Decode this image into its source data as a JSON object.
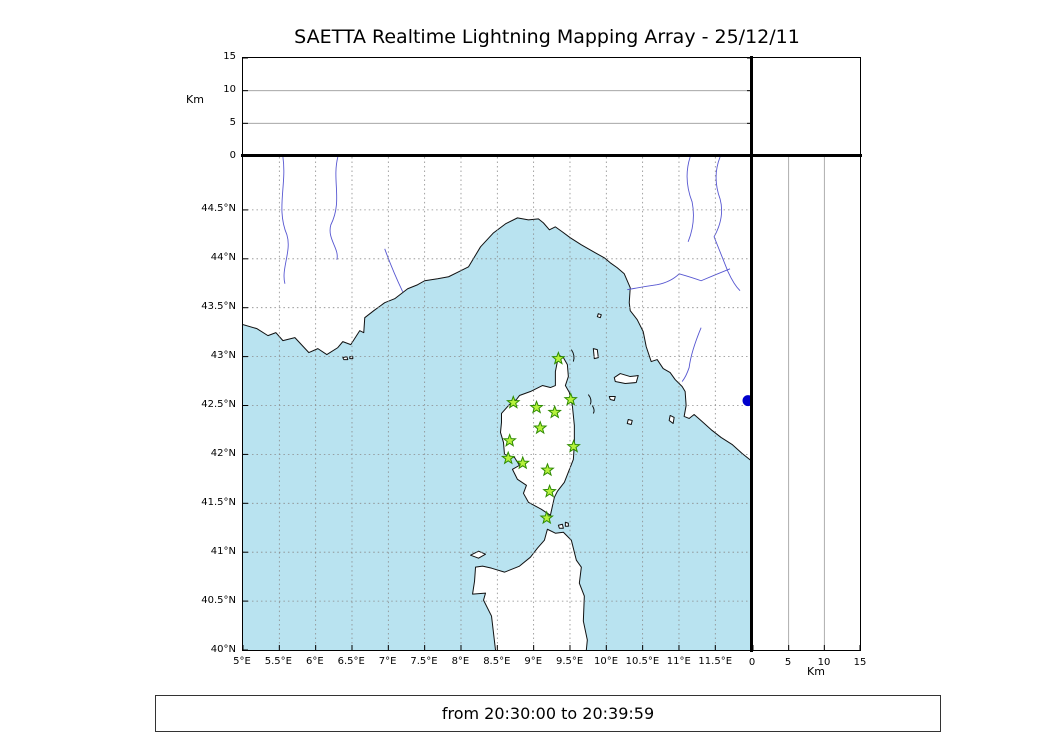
{
  "title": "SAETTA Realtime Lightning Mapping Array - 25/12/11",
  "footer": {
    "text": "from 20:30:00 to 20:39:59"
  },
  "altitude_axis": {
    "label": "Km",
    "min": 0,
    "max": 15,
    "ticks": [
      0,
      5,
      10,
      15
    ],
    "gridlines": [
      5,
      10
    ]
  },
  "map_axes": {
    "lon_min": 5,
    "lon_max": 12.005,
    "lat_min": 40,
    "lat_max": 45.041,
    "lon_ticks": [
      "5°E",
      "5.5°E",
      "6°E",
      "6.5°E",
      "7°E",
      "7.5°E",
      "8°E",
      "8.5°E",
      "9°E",
      "9.5°E",
      "10°E",
      "10.5°E",
      "11°E",
      "11.5°E"
    ],
    "lon_tick_values": [
      5,
      5.5,
      6,
      6.5,
      7,
      7.5,
      8,
      8.5,
      9,
      9.5,
      10,
      10.5,
      11,
      11.5
    ],
    "lat_ticks": [
      "40°N",
      "40.5°N",
      "41°N",
      "41.5°N",
      "42°N",
      "42.5°N",
      "43°N",
      "43.5°N",
      "44°N",
      "44.5°N"
    ],
    "lat_tick_values": [
      40,
      40.5,
      41,
      41.5,
      42,
      42.5,
      43,
      43.5,
      44,
      44.5
    ]
  },
  "colors": {
    "sea": "#b9e3f0",
    "land": "#ffffff",
    "coast": "#111111",
    "grid": "#8a8a8a",
    "river": "#5757d1",
    "station_fill": "#b6f23c",
    "station_stroke": "#2e8b00",
    "dot": "#0000cd"
  },
  "chart_data": {
    "type": "scatter",
    "title": "SAETTA Realtime Lightning Mapping Array - 25/12/11",
    "time_window": "from 20:30:00 to 20:39:59",
    "panels": [
      {
        "id": "altitude-vs-longitude",
        "position": "top",
        "x": "longitude",
        "y": "altitude_km",
        "ylim": [
          0,
          15
        ],
        "yticks": [
          0,
          5,
          10,
          15
        ],
        "ylabel": "Km",
        "gridlines_km": [
          5,
          10
        ],
        "points": []
      },
      {
        "id": "map",
        "position": "center",
        "x": "longitude",
        "y": "latitude",
        "xlim": [
          5,
          12
        ],
        "ylim": [
          40,
          45
        ],
        "grid": "dashed 0.5 degree",
        "points": []
      },
      {
        "id": "altitude-vs-latitude",
        "position": "right",
        "x": "altitude_km",
        "y": "latitude",
        "xlim": [
          0,
          15
        ],
        "xticks": [
          0,
          5,
          10,
          15
        ],
        "xlabel": "Km",
        "gridlines_km": [
          5,
          10
        ],
        "points": []
      },
      {
        "id": "altitude-histogram",
        "position": "top-right",
        "points": []
      }
    ],
    "stations": [
      {
        "lon": 9.34,
        "lat": 42.98
      },
      {
        "lon": 8.72,
        "lat": 42.53
      },
      {
        "lon": 9.04,
        "lat": 42.48
      },
      {
        "lon": 9.51,
        "lat": 42.56
      },
      {
        "lon": 9.29,
        "lat": 42.43
      },
      {
        "lon": 9.09,
        "lat": 42.27
      },
      {
        "lon": 8.67,
        "lat": 42.14
      },
      {
        "lon": 9.55,
        "lat": 42.08
      },
      {
        "lon": 8.65,
        "lat": 41.96
      },
      {
        "lon": 8.85,
        "lat": 41.91
      },
      {
        "lon": 9.19,
        "lat": 41.84
      },
      {
        "lon": 9.22,
        "lat": 41.62
      },
      {
        "lon": 9.18,
        "lat": 41.35
      }
    ],
    "extra_point": {
      "lon": 11.95,
      "lat": 42.55
    },
    "lightning_sources": []
  }
}
